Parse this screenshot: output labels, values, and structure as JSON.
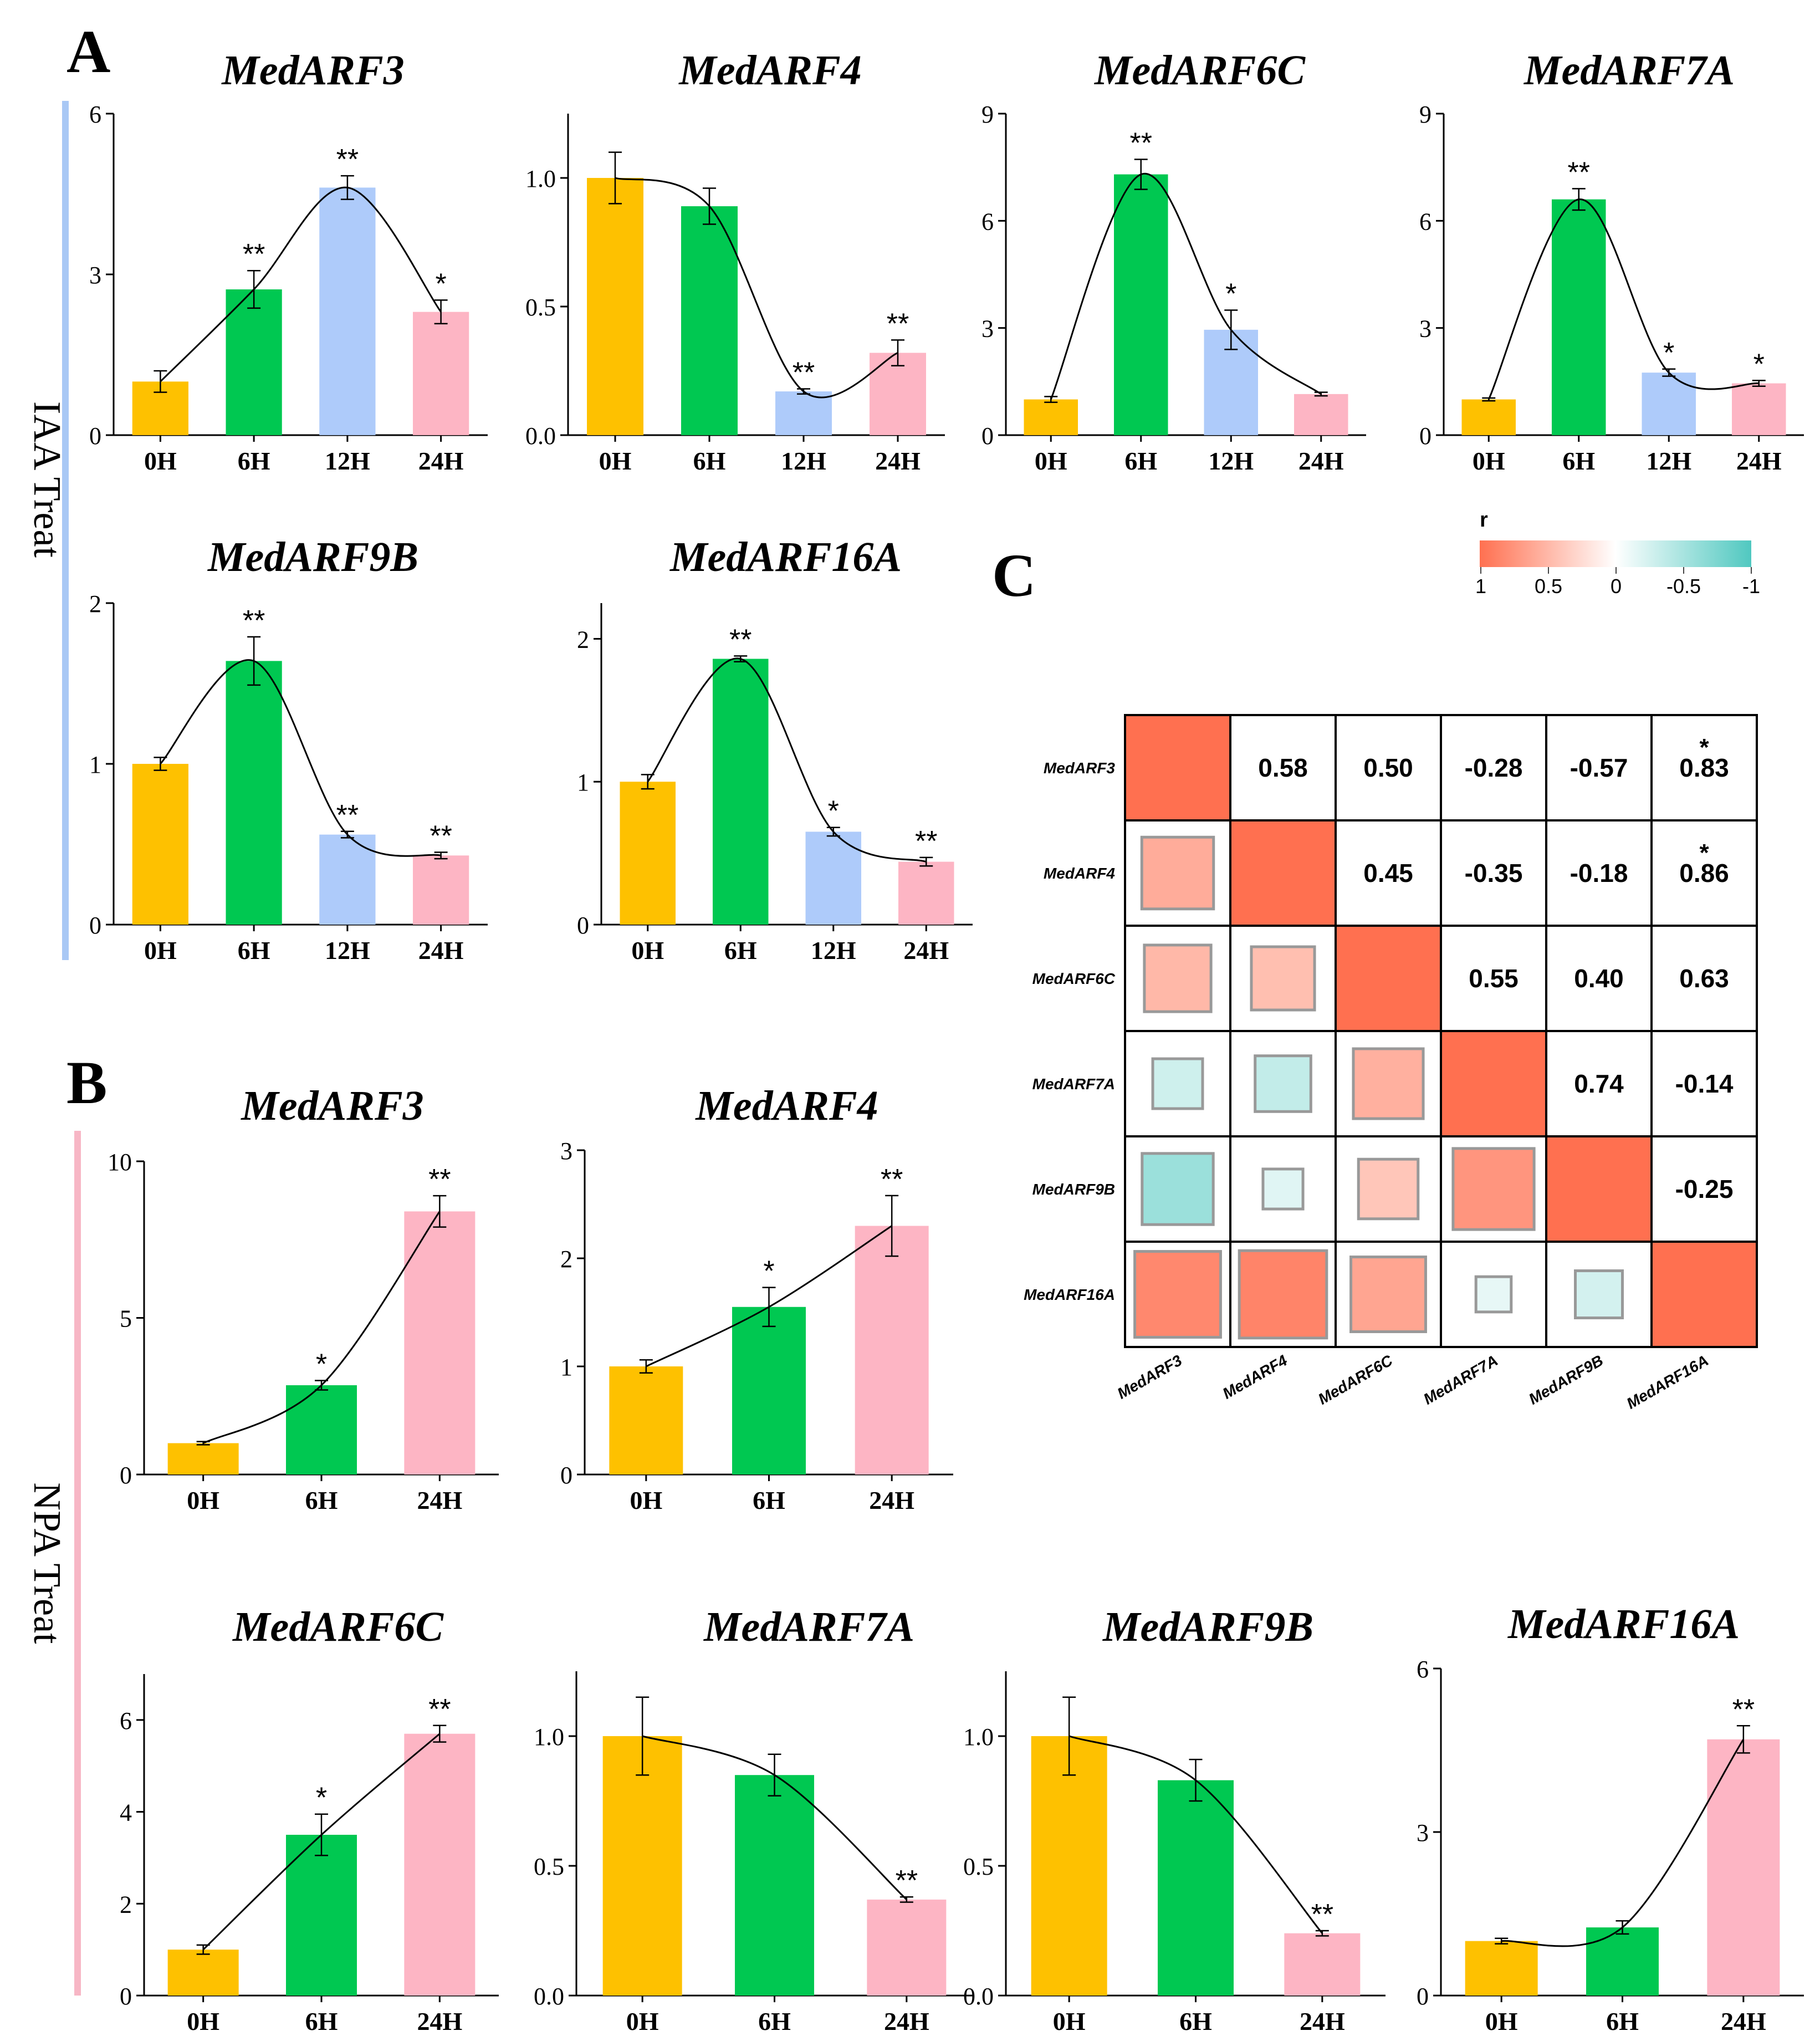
{
  "panels": {
    "A": {
      "label": "A",
      "side_label": "IAA Treat",
      "bar_color": "#a9c8f5"
    },
    "B": {
      "label": "B",
      "side_label": "NPA Treat",
      "bar_color": "#f7b6c5"
    },
    "C": {
      "label": "C"
    }
  },
  "colors": {
    "h0": "#fec100",
    "h6": "#00c851",
    "h12": "#aecbfa",
    "h24": "#fdb5c4"
  },
  "chart_data": [
    {
      "id": "iaa-medarf3",
      "type": "bar",
      "title": "MedARF3",
      "categories": [
        "0H",
        "6H",
        "12H",
        "24H"
      ],
      "values": [
        1.0,
        2.72,
        4.62,
        2.3
      ],
      "errors": [
        0.2,
        0.35,
        0.22,
        0.22
      ],
      "significance": [
        "",
        "**",
        "**",
        "*"
      ],
      "ylim": [
        0,
        6
      ],
      "yticks": [
        "0",
        "3",
        "6"
      ],
      "ytick_values": [
        0,
        3,
        6
      ]
    },
    {
      "id": "iaa-medarf4",
      "type": "bar",
      "title": "MedARF4",
      "categories": [
        "0H",
        "6H",
        "12H",
        "24H"
      ],
      "values": [
        1.0,
        0.89,
        0.17,
        0.32
      ],
      "errors": [
        0.1,
        0.07,
        0.01,
        0.05
      ],
      "significance": [
        "",
        "",
        "**",
        "**"
      ],
      "ylim": [
        0,
        1.25
      ],
      "yticks": [
        "0.0",
        "0.5",
        "1.0"
      ],
      "ytick_values": [
        0,
        0.5,
        1.0
      ]
    },
    {
      "id": "iaa-medarf6c",
      "type": "bar",
      "title": "MedARF6C",
      "categories": [
        "0H",
        "6H",
        "12H",
        "24H"
      ],
      "values": [
        1.0,
        7.3,
        2.95,
        1.15
      ],
      "errors": [
        0.08,
        0.42,
        0.55,
        0.05
      ],
      "significance": [
        "",
        "**",
        "*",
        ""
      ],
      "ylim": [
        0,
        9
      ],
      "yticks": [
        "0",
        "3",
        "6",
        "9"
      ],
      "ytick_values": [
        0,
        3,
        6,
        9
      ]
    },
    {
      "id": "iaa-medarf7a",
      "type": "bar",
      "title": "MedARF7A",
      "categories": [
        "0H",
        "6H",
        "12H",
        "24H"
      ],
      "values": [
        1.0,
        6.6,
        1.75,
        1.45
      ],
      "errors": [
        0.04,
        0.3,
        0.1,
        0.08
      ],
      "significance": [
        "",
        "**",
        "*",
        "*"
      ],
      "ylim": [
        0,
        9
      ],
      "yticks": [
        "0",
        "3",
        "6",
        "9"
      ],
      "ytick_values": [
        0,
        3,
        6,
        9
      ]
    },
    {
      "id": "iaa-medarf9b",
      "type": "bar",
      "title": "MedARF9B",
      "categories": [
        "0H",
        "6H",
        "12H",
        "24H"
      ],
      "values": [
        1.0,
        1.64,
        0.56,
        0.43
      ],
      "errors": [
        0.04,
        0.15,
        0.02,
        0.02
      ],
      "significance": [
        "",
        "**",
        "**",
        "**"
      ],
      "ylim": [
        0,
        2
      ],
      "yticks": [
        "0",
        "1",
        "2"
      ],
      "ytick_values": [
        0,
        1,
        2
      ]
    },
    {
      "id": "iaa-medarf16a",
      "type": "bar",
      "title": "MedARF16A",
      "categories": [
        "0H",
        "6H",
        "12H",
        "24H"
      ],
      "values": [
        1.0,
        1.86,
        0.65,
        0.44
      ],
      "errors": [
        0.05,
        0.02,
        0.03,
        0.03
      ],
      "significance": [
        "",
        "**",
        "*",
        "**"
      ],
      "ylim": [
        0,
        2.25
      ],
      "yticks": [
        "0",
        "1",
        "2"
      ],
      "ytick_values": [
        0,
        1,
        2
      ]
    },
    {
      "id": "npa-medarf3",
      "type": "bar",
      "title": "MedARF3",
      "categories": [
        "0H",
        "6H",
        "24H"
      ],
      "values": [
        1.0,
        2.85,
        8.4
      ],
      "errors": [
        0.05,
        0.15,
        0.5
      ],
      "significance": [
        "",
        "*",
        "**"
      ],
      "ylim": [
        0,
        10
      ],
      "yticks": [
        "0",
        "5",
        "10"
      ],
      "ytick_values": [
        0,
        5,
        10
      ]
    },
    {
      "id": "npa-medarf4",
      "type": "bar",
      "title": "MedARF4",
      "categories": [
        "0H",
        "6H",
        "24H"
      ],
      "values": [
        1.0,
        1.55,
        2.3
      ],
      "errors": [
        0.06,
        0.18,
        0.28
      ],
      "significance": [
        "",
        "*",
        "**"
      ],
      "ylim": [
        0,
        3
      ],
      "yticks": [
        "0",
        "1",
        "2",
        "3"
      ],
      "ytick_values": [
        0,
        1,
        2,
        3
      ]
    },
    {
      "id": "npa-medarf6c",
      "type": "bar",
      "title": "MedARF6C",
      "categories": [
        "0H",
        "6H",
        "24H"
      ],
      "values": [
        1.0,
        3.5,
        5.7
      ],
      "errors": [
        0.1,
        0.45,
        0.18
      ],
      "significance": [
        "",
        "*",
        "**"
      ],
      "ylim": [
        0,
        7
      ],
      "yticks": [
        "0",
        "2",
        "4",
        "6"
      ],
      "ytick_values": [
        0,
        2,
        4,
        6
      ]
    },
    {
      "id": "npa-medarf7a",
      "type": "bar",
      "title": "MedARF7A",
      "categories": [
        "0H",
        "6H",
        "24H"
      ],
      "values": [
        1.0,
        0.85,
        0.37
      ],
      "errors": [
        0.15,
        0.08,
        0.01
      ],
      "significance": [
        "",
        "",
        "**"
      ],
      "ylim": [
        0,
        1.25
      ],
      "yticks": [
        "0.0",
        "0.5",
        "1.0"
      ],
      "ytick_values": [
        0,
        0.5,
        1.0
      ]
    },
    {
      "id": "npa-medarf9b",
      "type": "bar",
      "title": "MedARF9B",
      "categories": [
        "0H",
        "6H",
        "24H"
      ],
      "values": [
        1.0,
        0.83,
        0.24
      ],
      "errors": [
        0.15,
        0.08,
        0.01
      ],
      "significance": [
        "",
        "",
        "**"
      ],
      "ylim": [
        0,
        1.25
      ],
      "yticks": [
        "0.0",
        "0.5",
        "1.0"
      ],
      "ytick_values": [
        0,
        0.5,
        1.0
      ]
    },
    {
      "id": "npa-medarf16a",
      "type": "bar",
      "title": "MedARF16A",
      "categories": [
        "0H",
        "6H",
        "24H"
      ],
      "values": [
        1.0,
        1.25,
        4.7
      ],
      "errors": [
        0.05,
        0.12,
        0.25
      ],
      "significance": [
        "",
        "",
        "**"
      ],
      "ylim": [
        0,
        6
      ],
      "yticks": [
        "0",
        "3",
        "6"
      ],
      "ytick_values": [
        0,
        3,
        6
      ]
    },
    {
      "id": "correlation",
      "type": "heatmap",
      "legend": {
        "title": "r",
        "ticks": [
          "1",
          "0.5",
          "0",
          "-0.5",
          "-1"
        ]
      },
      "genes": [
        "MedARF3",
        "MedARF4",
        "MedARF6C",
        "MedARF7A",
        "MedARF9B",
        "MedARF16A"
      ],
      "labels": [
        [
          "",
          "0.58",
          "0.50",
          "-0.28",
          "-0.57",
          "0.83"
        ],
        [
          "",
          "",
          "0.45",
          "-0.35",
          "-0.18",
          "0.86"
        ],
        [
          "",
          "",
          "",
          "0.55",
          "0.40",
          "0.63"
        ],
        [
          "",
          "",
          "",
          "",
          "0.74",
          "-0.14"
        ],
        [
          "",
          "",
          "",
          "",
          "",
          "-0.25"
        ],
        [
          "",
          "",
          "",
          "",
          "",
          ""
        ]
      ],
      "stars": [
        [
          "",
          "",
          "",
          "",
          "",
          "*"
        ],
        [
          "",
          "",
          "",
          "",
          "",
          "*"
        ],
        [
          "",
          "",
          "",
          "",
          "",
          ""
        ],
        [
          "",
          "",
          "",
          "",
          "",
          ""
        ],
        [
          "",
          "",
          "",
          "",
          "",
          ""
        ],
        [
          "",
          "",
          "",
          "",
          "",
          ""
        ]
      ],
      "values": [
        [
          1,
          0.58,
          0.5,
          -0.28,
          -0.57,
          0.83
        ],
        [
          0.58,
          1,
          0.45,
          -0.35,
          -0.18,
          0.86
        ],
        [
          0.5,
          0.45,
          1,
          0.55,
          0.4,
          0.63
        ],
        [
          -0.28,
          -0.35,
          0.55,
          1,
          0.74,
          -0.14
        ],
        [
          -0.57,
          -0.18,
          0.4,
          0.74,
          1,
          -0.25
        ],
        [
          0.83,
          0.86,
          0.63,
          -0.14,
          -0.25,
          1
        ]
      ]
    }
  ]
}
